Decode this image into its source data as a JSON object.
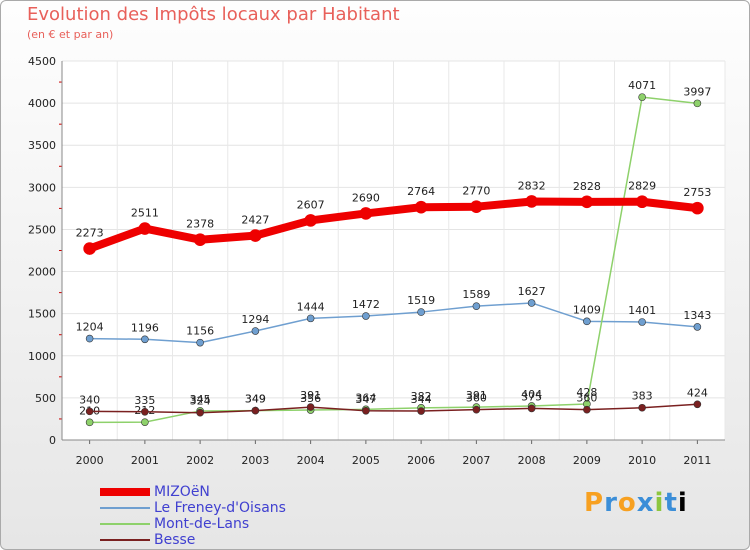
{
  "title": "Evolution des Impôts locaux par Habitant",
  "subtitle": "(en € et par an)",
  "logo_text": "Proxiti",
  "chart_data": {
    "type": "line",
    "x": [
      "2000",
      "2001",
      "2002",
      "2003",
      "2004",
      "2005",
      "2006",
      "2007",
      "2008",
      "2009",
      "2010",
      "2011"
    ],
    "ylim": [
      0,
      4500
    ],
    "yticks": [
      0,
      500,
      1000,
      1500,
      2000,
      2500,
      3000,
      3500,
      4000,
      4500
    ],
    "grid": true,
    "legend": "bottom-left",
    "series": [
      {
        "name": "MIZOëN",
        "color": "#ee0000",
        "values": [
          2273,
          2511,
          2378,
          2427,
          2607,
          2690,
          2764,
          2770,
          2832,
          2828,
          2829,
          2753
        ],
        "bold": true
      },
      {
        "name": "Le Freney-d'Oisans",
        "color": "#6f9fd0",
        "values": [
          1204,
          1196,
          1156,
          1294,
          1444,
          1472,
          1519,
          1589,
          1627,
          1409,
          1401,
          1343
        ]
      },
      {
        "name": "Mont-de-Lans",
        "color": "#8ed16b",
        "values": [
          210,
          212,
          345,
          349,
          356,
          364,
          382,
          391,
          404,
          428,
          4071,
          3997
        ]
      },
      {
        "name": "Besse",
        "color": "#7a2020",
        "values": [
          340,
          335,
          324,
          349,
          391,
          347,
          344,
          360,
          375,
          360,
          383,
          424
        ]
      }
    ]
  }
}
